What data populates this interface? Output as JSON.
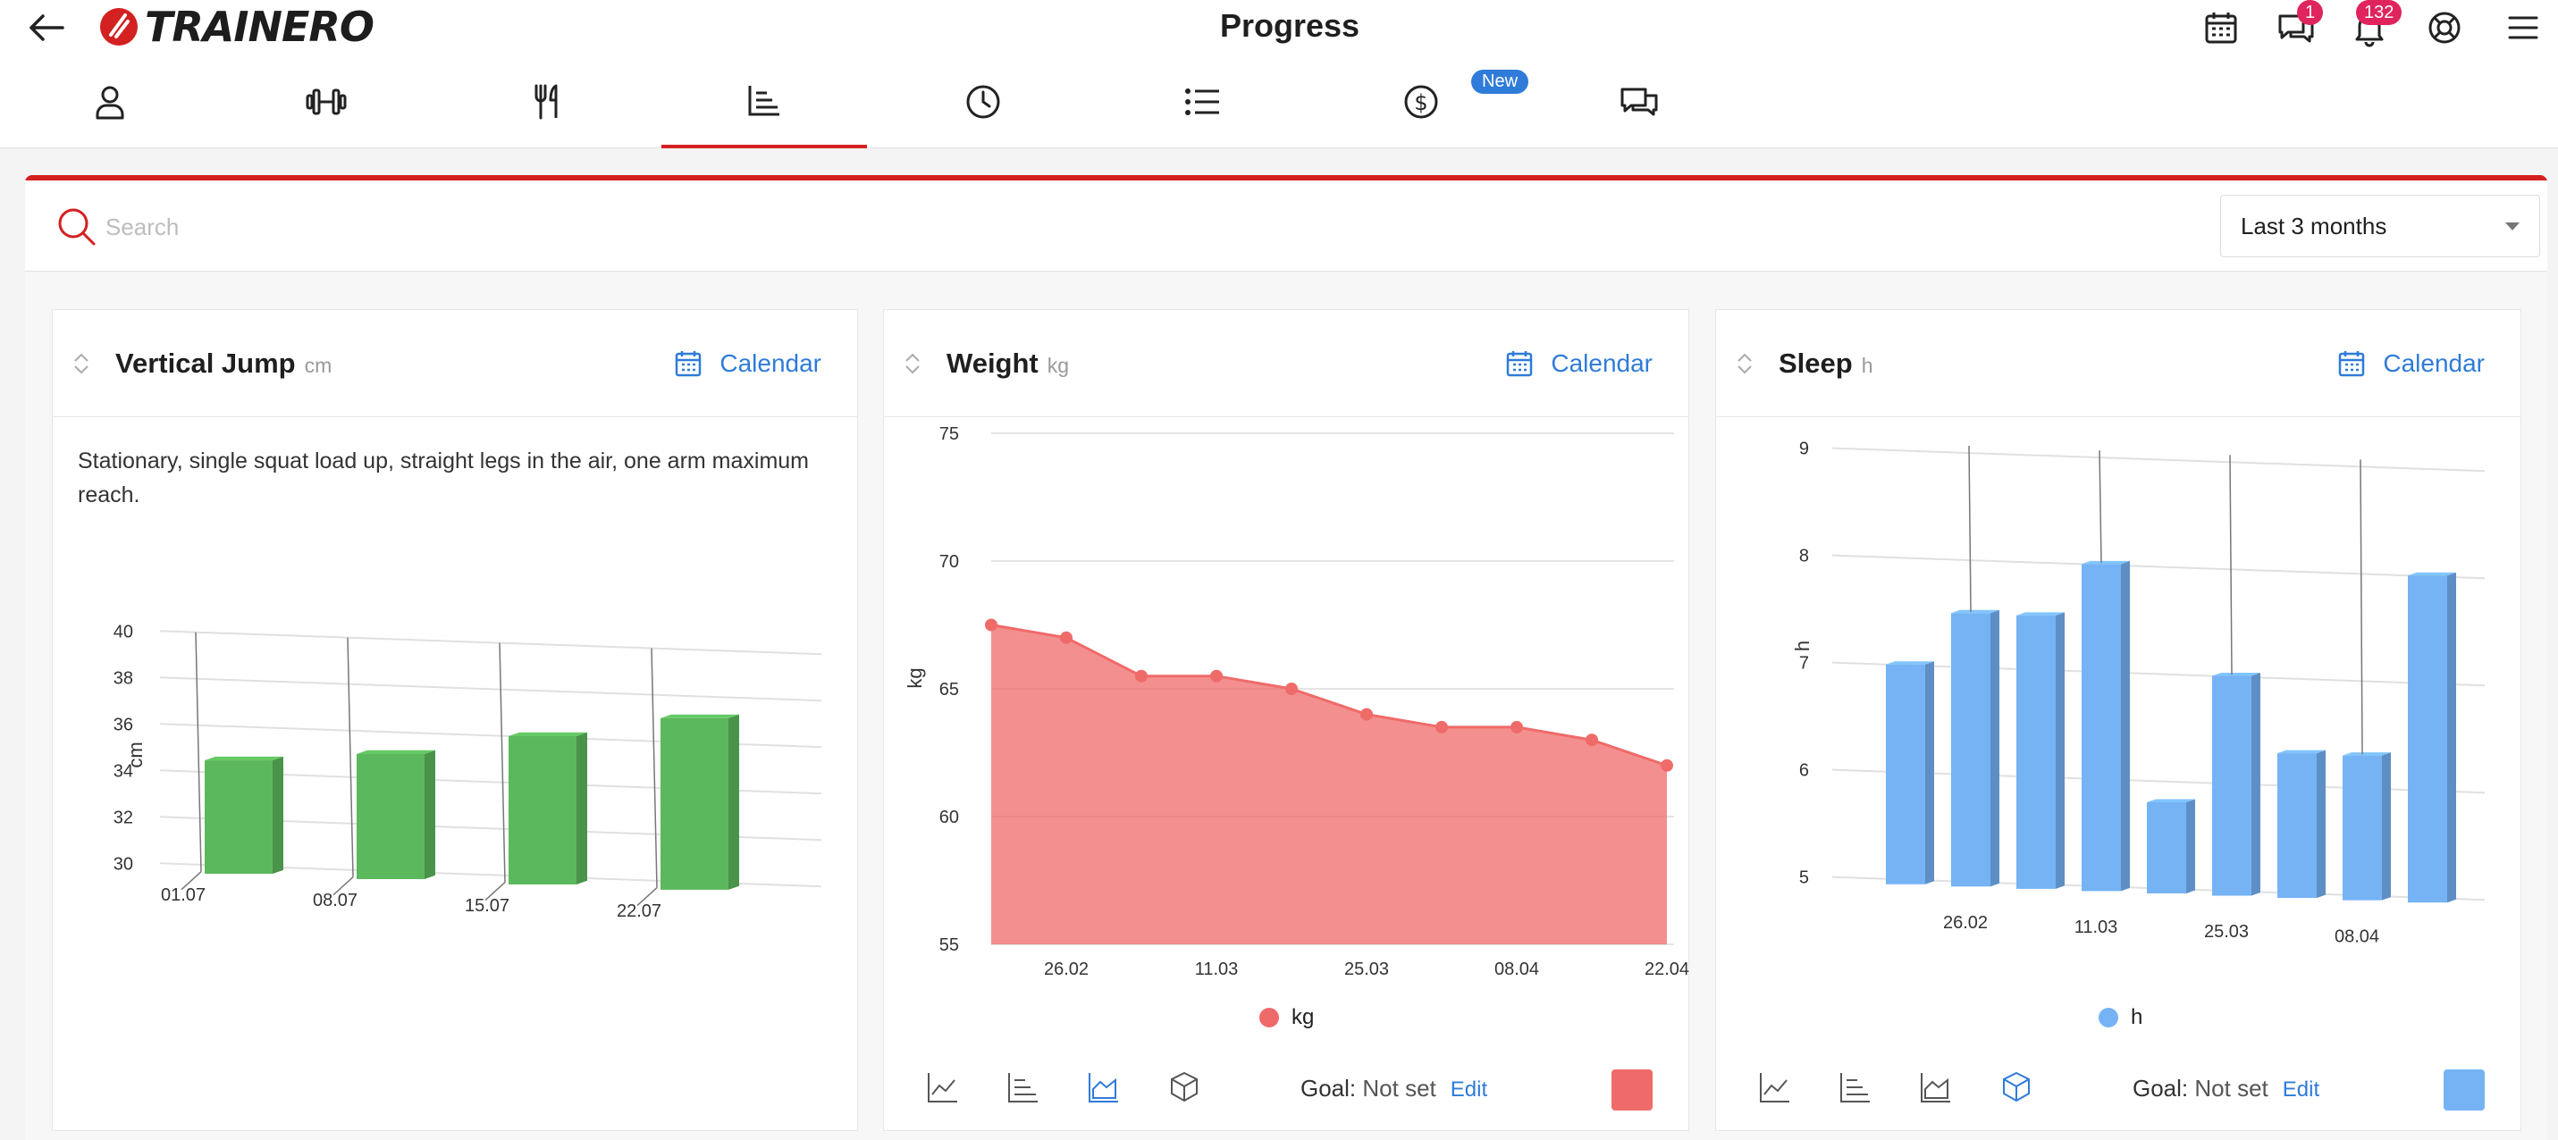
{
  "app": {
    "title": "Progress",
    "logo_text": "TRAINERO"
  },
  "notifications": {
    "messages_count": "1",
    "alerts_count": "132"
  },
  "tabs": [
    {
      "icon": "user-icon"
    },
    {
      "icon": "dumbbell-icon"
    },
    {
      "icon": "fork-knife-icon"
    },
    {
      "icon": "bar-chart-icon",
      "active": true
    },
    {
      "icon": "clock-icon"
    },
    {
      "icon": "list-icon"
    },
    {
      "icon": "dollar-icon",
      "badge": "New"
    },
    {
      "icon": "chat-icon"
    }
  ],
  "search": {
    "placeholder": "Search",
    "value": ""
  },
  "period": {
    "selected": "Last 3 months"
  },
  "colors": {
    "accent": "#d32020",
    "link": "#2f7bd9",
    "green": "#5cb85c",
    "red": "#ef6b69",
    "blue": "#75b3f5"
  },
  "cards": {
    "jump": {
      "title": "Vertical Jump",
      "unit": "cm",
      "calendar": "Calendar",
      "description": "Stationary, single squat load up, straight legs in the air, one arm maximum reach."
    },
    "weight": {
      "title": "Weight",
      "unit": "kg",
      "calendar": "Calendar",
      "legend": "kg",
      "goal_label": "Goal:",
      "goal_value": "Not set",
      "edit": "Edit"
    },
    "sleep": {
      "title": "Sleep",
      "unit": "h",
      "calendar": "Calendar",
      "legend": "h",
      "goal_label": "Goal:",
      "goal_value": "Not set",
      "edit": "Edit"
    }
  },
  "chart_data": [
    {
      "type": "bar",
      "title": "Vertical Jump",
      "ylabel": "cm",
      "ylim": [
        30,
        40
      ],
      "yticks": [
        30,
        32,
        34,
        36,
        38,
        40
      ],
      "categories": [
        "01.07",
        "08.07",
        "15.07",
        "22.07"
      ],
      "values": [
        34.5,
        35,
        36,
        37
      ]
    },
    {
      "type": "area",
      "title": "Weight",
      "ylabel": "kg",
      "ylim": [
        55,
        75
      ],
      "yticks": [
        55,
        60,
        65,
        70,
        75
      ],
      "x_tick_labels": [
        "26.02",
        "11.03",
        "25.03",
        "08.04",
        "22.04"
      ],
      "values": [
        67.5,
        67,
        65.5,
        65.5,
        65,
        64,
        63.5,
        63.5,
        63,
        62
      ],
      "series": [
        {
          "name": "kg"
        }
      ]
    },
    {
      "type": "bar",
      "title": "Sleep",
      "ylabel": "h",
      "ylim": [
        5,
        9
      ],
      "yticks": [
        5,
        6,
        7,
        8,
        9
      ],
      "x_tick_labels": [
        "26.02",
        "11.03",
        "25.03",
        "08.04"
      ],
      "values": [
        7,
        7.5,
        7.5,
        8,
        5.8,
        7,
        6.3,
        6.3,
        8
      ],
      "series": [
        {
          "name": "h"
        }
      ]
    }
  ]
}
